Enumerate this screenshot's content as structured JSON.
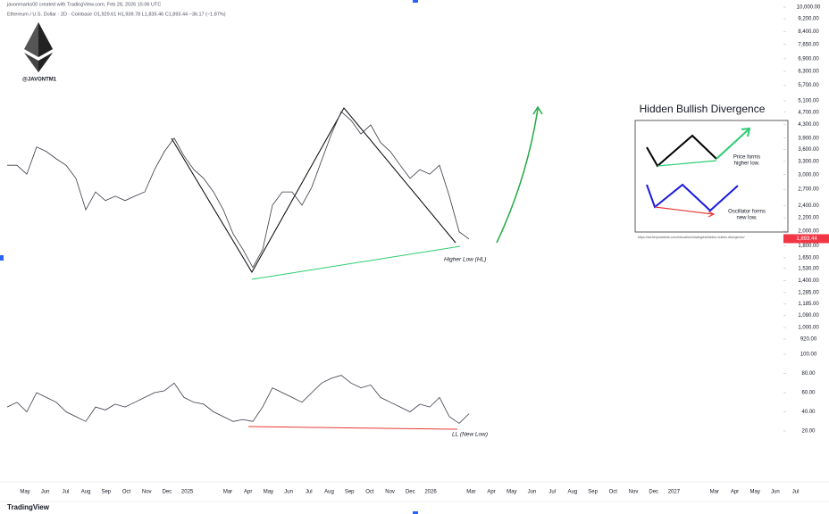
{
  "header": {
    "credit": "javonmarks00 created with TradingView.com, Feb 28, 2026 15:06 UTC",
    "symbol_line": "Ethereum / U.S. Dollar · 2D · Coinbase  O1,929.61 H1,939.78 L1,835.46 C1,893.44 −36.17 (−1.87%)",
    "handle": "@JAVONTM1"
  },
  "chart_data": [
    {
      "type": "line",
      "log_scale": true,
      "color": "#363a45",
      "values": [
        3210,
        3210,
        3010,
        3660,
        3540,
        3360,
        3210,
        2920,
        2330,
        2650,
        2490,
        2570,
        2490,
        2570,
        2650,
        3110,
        3540,
        3900,
        3430,
        3110,
        2920,
        2650,
        2330,
        1960,
        1750,
        1540,
        1750,
        2410,
        2650,
        2650,
        2410,
        2740,
        3320,
        4020,
        4720,
        4430,
        4020,
        4290,
        3780,
        3540,
        3210,
        2920,
        3110,
        3010,
        3210,
        2570,
        1990,
        1890
      ],
      "ylim": [
        920,
        10000
      ],
      "yticks": [
        {
          "value": 10000,
          "label": "10,000.00"
        },
        {
          "value": 9200,
          "label": "9,200.00"
        },
        {
          "value": 8400,
          "label": "8,400.00"
        },
        {
          "value": 7650,
          "label": "7,650.00"
        },
        {
          "value": 6900,
          "label": "6,900.00"
        },
        {
          "value": 6300,
          "label": "6,300.00"
        },
        {
          "value": 5700,
          "label": "5,700.00"
        },
        {
          "value": 5100,
          "label": "5,100.00"
        },
        {
          "value": 4700,
          "label": "4,700.00"
        },
        {
          "value": 4300,
          "label": "4,300.00"
        },
        {
          "value": 3900,
          "label": "3,900.00"
        },
        {
          "value": 3600,
          "label": "3,600.00"
        },
        {
          "value": 3300,
          "label": "3,300.00"
        },
        {
          "value": 3000,
          "label": "3,000.00"
        },
        {
          "value": 2700,
          "label": "2,700.00"
        },
        {
          "value": 2400,
          "label": "2,400.00"
        },
        {
          "value": 2200,
          "label": "2,200.00"
        },
        {
          "value": 2000,
          "label": "2,000.00"
        },
        {
          "value": 1800,
          "label": "1,800.00"
        },
        {
          "value": 1650,
          "label": "1,650.00"
        },
        {
          "value": 1530,
          "label": "1,530.00"
        },
        {
          "value": 1400,
          "label": "1,400.00"
        },
        {
          "value": 1285,
          "label": "1,285.00"
        },
        {
          "value": 1185,
          "label": "1,185.00"
        },
        {
          "value": 1090,
          "label": "1,090.00"
        },
        {
          "value": 1000,
          "label": "1,000.00"
        },
        {
          "value": 920,
          "label": "920.00"
        }
      ],
      "last_price": {
        "value": 1893.44,
        "label": "1,893.44"
      },
      "annotation": "Higher Low (HL)"
    },
    {
      "type": "line",
      "color": "#363a45",
      "values": [
        45,
        50,
        40,
        60,
        55,
        50,
        40,
        35,
        30,
        45,
        42,
        48,
        45,
        50,
        55,
        60,
        62,
        70,
        55,
        50,
        48,
        40,
        35,
        30,
        32,
        30,
        45,
        65,
        60,
        55,
        50,
        60,
        70,
        75,
        78,
        70,
        65,
        68,
        55,
        50,
        45,
        40,
        48,
        45,
        55,
        35,
        28,
        38
      ],
      "ylim": [
        20,
        100
      ],
      "yticks": [
        {
          "value": 100,
          "label": "100.00"
        },
        {
          "value": 80,
          "label": "80.00"
        },
        {
          "value": 60,
          "label": "60.00"
        },
        {
          "value": 40,
          "label": "40.00"
        },
        {
          "value": 20,
          "label": "20.00"
        }
      ],
      "annotation": "LL (New Low)"
    }
  ],
  "time_axis": [
    "May",
    "Jun",
    "Jul",
    "Aug",
    "Sep",
    "Oct",
    "Nov",
    "Dec",
    "2025",
    null,
    "Mar",
    "Apr",
    "May",
    "Jun",
    "Jul",
    "Aug",
    "Sep",
    "Oct",
    "Nov",
    "Dec",
    "2026",
    null,
    "Mar",
    "Apr",
    "May",
    "Jun",
    "Jul",
    "Aug",
    "Sep",
    "Oct",
    "Nov",
    "Dec",
    "2027",
    null,
    "Mar",
    "Apr",
    "May",
    "Jun",
    "Jul"
  ],
  "inset": {
    "title": "Hidden Bullish Divergence",
    "price_note": [
      "Price forms",
      "higher low."
    ],
    "osc_note": [
      "Oscillator forms",
      "new low."
    ],
    "source": "https://archerymarkets.com/education/strategies/hidden-bullish-divergence/"
  },
  "footer": {
    "brand": "TradingView"
  }
}
